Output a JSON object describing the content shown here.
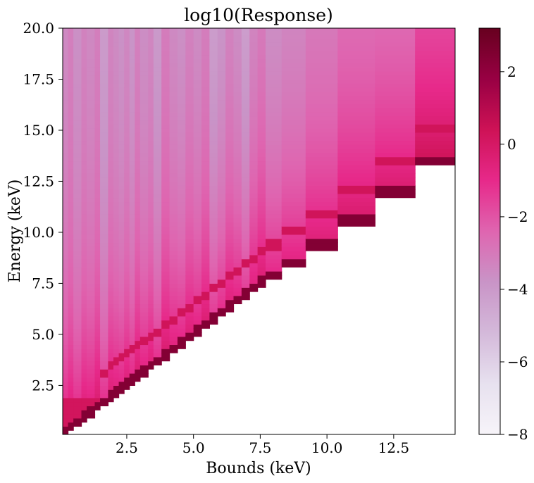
{
  "chart_data": {
    "type": "heatmap",
    "title": "log10(Response)",
    "xlabel": "Bounds (keV)",
    "ylabel": "Energy (keV)",
    "xlim": [
      0.1,
      14.8
    ],
    "ylim": [
      0.1,
      20.0
    ],
    "xticks": [
      2.5,
      5.0,
      7.5,
      10.0,
      12.5
    ],
    "xtick_labels": [
      "2.5",
      "5.0",
      "7.5",
      "10.0",
      "12.5"
    ],
    "yticks": [
      2.5,
      5.0,
      7.5,
      10.0,
      12.5,
      15.0,
      17.5,
      20.0
    ],
    "ytick_labels": [
      "2.5",
      "5.0",
      "7.5",
      "10.0",
      "12.5",
      "15.0",
      "17.5",
      "20.0"
    ],
    "colorbar": {
      "cmap": "PuRd",
      "vmin": -8,
      "vmax": 3.2,
      "ticks": [
        2,
        0,
        -2,
        -4,
        -6,
        -8
      ],
      "tick_labels": [
        "2",
        "0",
        "−2",
        "−4",
        "−6",
        "−8"
      ]
    },
    "bounds_keV": [
      0.1,
      0.3,
      0.5,
      0.8,
      1.0,
      1.3,
      1.5,
      1.8,
      2.0,
      2.2,
      2.4,
      2.6,
      2.8,
      3.0,
      3.3,
      3.5,
      3.8,
      4.1,
      4.4,
      4.7,
      5.0,
      5.3,
      5.6,
      5.9,
      6.2,
      6.5,
      6.8,
      7.1,
      7.4,
      7.7,
      8.3,
      9.2,
      10.4,
      11.8,
      13.3,
      14.8
    ],
    "upper_strip_log10": [
      -3.6,
      -3.3,
      -3.8,
      -3.4,
      -3.6,
      -3.3,
      -4.2,
      -3.5,
      -3.7,
      -3.9,
      -3.6,
      -4.0,
      -3.4,
      -3.8,
      -3.6,
      -4.2,
      -3.3,
      -3.7,
      -3.9,
      -3.5,
      -3.8,
      -3.4,
      -4.4,
      -4.1,
      -3.6,
      -3.9,
      -4.5,
      -3.7,
      -3.4,
      -4.0,
      -3.8,
      -3.5,
      -3.2,
      -3.3,
      -2.7
    ],
    "structure": {
      "diagonal_photopeak_log10": 2.4,
      "secondary_peak_log10": 0.3,
      "secondary_peak_offset_keV": 1.7,
      "low_energy_floor_log10": 0.2,
      "gradient_scale_keV": 6.0
    }
  }
}
